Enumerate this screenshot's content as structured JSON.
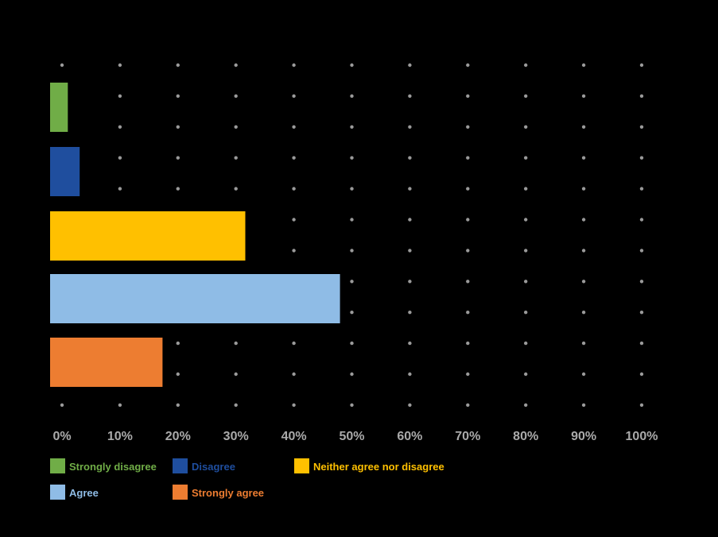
{
  "chart_data": {
    "type": "bar",
    "orientation": "horizontal",
    "categories": [
      "Strongly disagree",
      "Disagree",
      "Neither agree nor disagree",
      "Agree",
      "Strongly agree"
    ],
    "values": [
      3,
      5,
      33,
      49,
      19
    ],
    "colors": [
      "#70AD47",
      "#1F4E9E",
      "#FFC000",
      "#8FBCE6",
      "#ED7D31"
    ],
    "xlim": [
      0,
      100
    ],
    "x_ticks": [
      "0%",
      "10%",
      "20%",
      "30%",
      "40%",
      "50%",
      "60%",
      "70%",
      "80%",
      "90%",
      "100%"
    ],
    "grid": true,
    "grid_style": "dotted",
    "tick_color": "#AAAAAA",
    "legend": {
      "placement": "bottom-left",
      "entries": [
        {
          "label": "Strongly disagree",
          "color": "#70AD47"
        },
        {
          "label": "Disagree",
          "color": "#1F4E9E"
        },
        {
          "label": "Neither agree nor disagree",
          "color": "#FFC000"
        },
        {
          "label": "Agree",
          "color": "#8FBCE6"
        },
        {
          "label": "Strongly agree",
          "color": "#ED7D31"
        }
      ]
    }
  }
}
